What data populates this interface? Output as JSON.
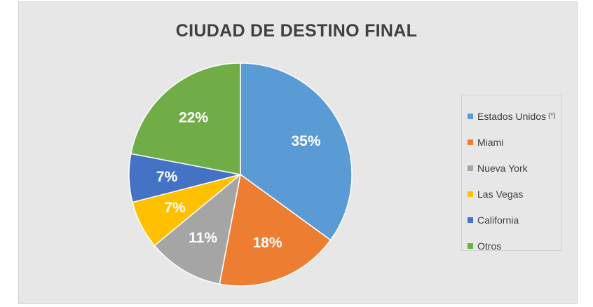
{
  "chart_data": {
    "type": "pie",
    "title": "CIUDAD DE DESTINO FINAL",
    "categories": [
      "Estados Unidos",
      "Miami",
      "Nueva York",
      "Las Vegas",
      "California",
      "Otros"
    ],
    "values": [
      35,
      18,
      11,
      7,
      7,
      22
    ],
    "value_labels": [
      "35%",
      "18%",
      "11%",
      "7%",
      "7%",
      "22%"
    ],
    "colors": [
      "#5b9bd5",
      "#ed7d31",
      "#a5a5a5",
      "#ffc000",
      "#4472c4",
      "#70ad47"
    ],
    "legend_note": "(*)",
    "legend_position": "right",
    "start_angle": "top",
    "direction": "clockwise",
    "background": "#e7e7e7"
  }
}
